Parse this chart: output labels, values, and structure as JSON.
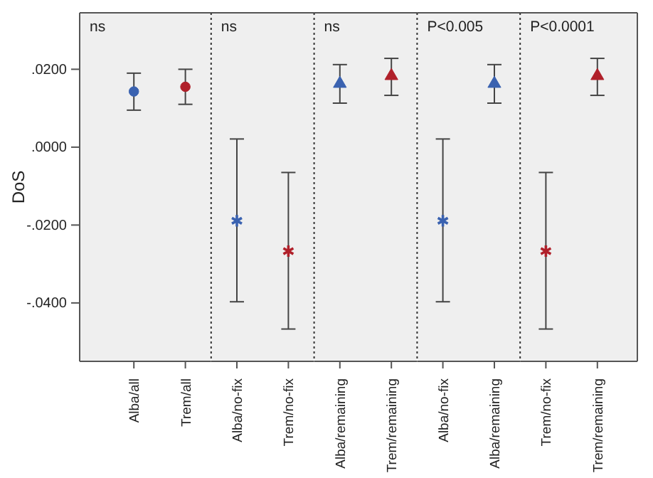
{
  "chart_data": [
    {
      "type": "scatter",
      "categories": [
        "Alba/all",
        "Trem/all"
      ],
      "ylabel": "DoS",
      "annotations": [
        "ns"
      ],
      "ylim": [
        -0.055,
        0.0345
      ],
      "yticks": [
        {
          "value": -0.04,
          "label": "-.0400"
        },
        {
          "value": -0.02,
          "label": "-.0200"
        },
        {
          "value": 0,
          "label": ".0000"
        },
        {
          "value": 0.02,
          "label": ".0200"
        }
      ],
      "series": [
        {
          "color": "#3a62b0",
          "marker": "circle",
          "values": [
            0.0143,
            null
          ],
          "errors": [
            [
              0.0095,
              0.019
            ],
            null
          ]
        },
        {
          "color": "#b0202a",
          "marker": "circle",
          "values": [
            null,
            0.0155
          ],
          "errors": [
            null,
            [
              0.011,
              0.02
            ]
          ]
        }
      ]
    },
    {
      "type": "scatter",
      "categories": [
        "Alba/no-fix",
        "Trem/no-fix"
      ],
      "annotations": [
        "ns"
      ],
      "tick_labels": "x",
      "ylim": [
        -0.055,
        0.0345
      ],
      "series": [
        {
          "color": "#3a62b0",
          "marker": "cross",
          "values": [
            -0.0189,
            null
          ],
          "errors": [
            [
              -0.0397,
              0.0021
            ],
            null
          ]
        },
        {
          "color": "#b0202a",
          "marker": "cross",
          "values": [
            null,
            -0.0267
          ],
          "errors": [
            null,
            [
              -0.0467,
              -0.0065
            ]
          ]
        }
      ]
    },
    {
      "type": "scatter",
      "categories": [
        "Alba/remaining",
        "Trem/remaining"
      ],
      "annotations": [
        "ns"
      ],
      "tick_labels": "x",
      "ylim": [
        -0.055,
        0.0345
      ],
      "series": [
        {
          "color": "#3a62b0",
          "marker": "triangle",
          "values": [
            0.0163,
            null
          ],
          "errors": [
            [
              0.0113,
              0.0212
            ],
            null
          ]
        },
        {
          "color": "#b0202a",
          "marker": "triangle",
          "values": [
            null,
            0.0183
          ],
          "errors": [
            null,
            [
              0.0133,
              0.0228
            ]
          ]
        }
      ]
    },
    {
      "type": "scatter",
      "categories": [
        "Alba/no-fix",
        "Alba/remaining"
      ],
      "annotations": [
        "P<0.005"
      ],
      "tick_labels": "x",
      "ylim": [
        -0.055,
        0.0345
      ],
      "series": [
        {
          "color": "#3a62b0",
          "marker": "cross",
          "values": [
            -0.0189,
            null
          ],
          "errors": [
            [
              -0.0397,
              0.0021
            ],
            null
          ]
        },
        {
          "color": "#3a62b0",
          "marker": "triangle",
          "values": [
            null,
            0.0163
          ],
          "errors": [
            null,
            [
              0.0113,
              0.0212
            ]
          ]
        }
      ]
    },
    {
      "type": "scatter",
      "categories": [
        "Trem/no-fix",
        "Trem/remaining"
      ],
      "annotations": [
        "P<0.0001"
      ],
      "tick_labels": "x",
      "ylim": [
        -0.055,
        0.0345
      ],
      "series": [
        {
          "color": "#b0202a",
          "marker": "cross",
          "values": [
            -0.0267,
            null
          ],
          "errors": [
            [
              -0.0467,
              -0.0065
            ],
            null
          ]
        },
        {
          "color": "#b0202a",
          "marker": "triangle",
          "values": [
            null,
            0.0183
          ],
          "errors": [
            null,
            [
              0.0133,
              0.0228
            ]
          ]
        }
      ]
    }
  ]
}
